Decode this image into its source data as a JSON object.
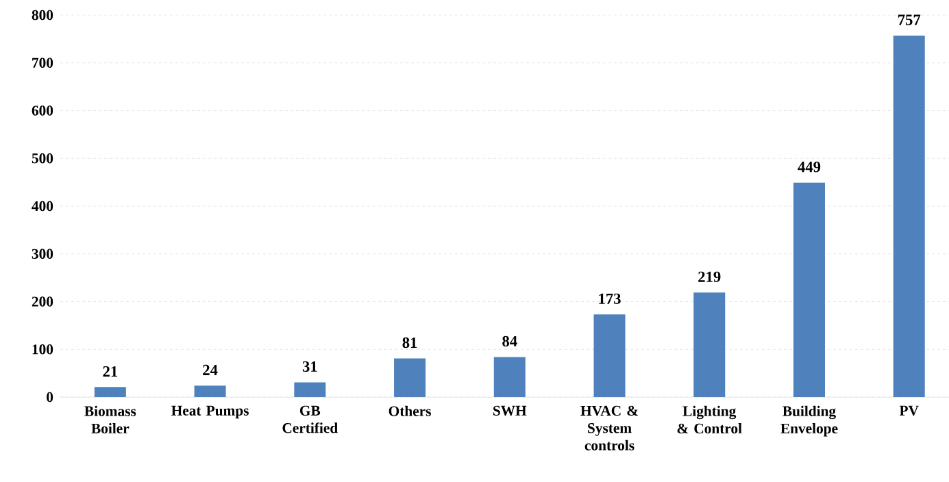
{
  "chart_data": {
    "type": "bar",
    "categories": [
      "Biomass Boiler",
      "Heat Pumps",
      "GB Certified",
      "Others",
      "SWH",
      "HVAC & System controls",
      "Lighting & Control",
      "Building Envelope",
      "PV"
    ],
    "values": [
      21,
      24,
      31,
      81,
      84,
      173,
      219,
      449,
      757
    ],
    "color": "#4f81bd",
    "ylim": [
      0,
      800
    ],
    "yticks": [
      0,
      100,
      200,
      300,
      400,
      500,
      600,
      700,
      800
    ],
    "grid": "y",
    "data_labels": true
  }
}
